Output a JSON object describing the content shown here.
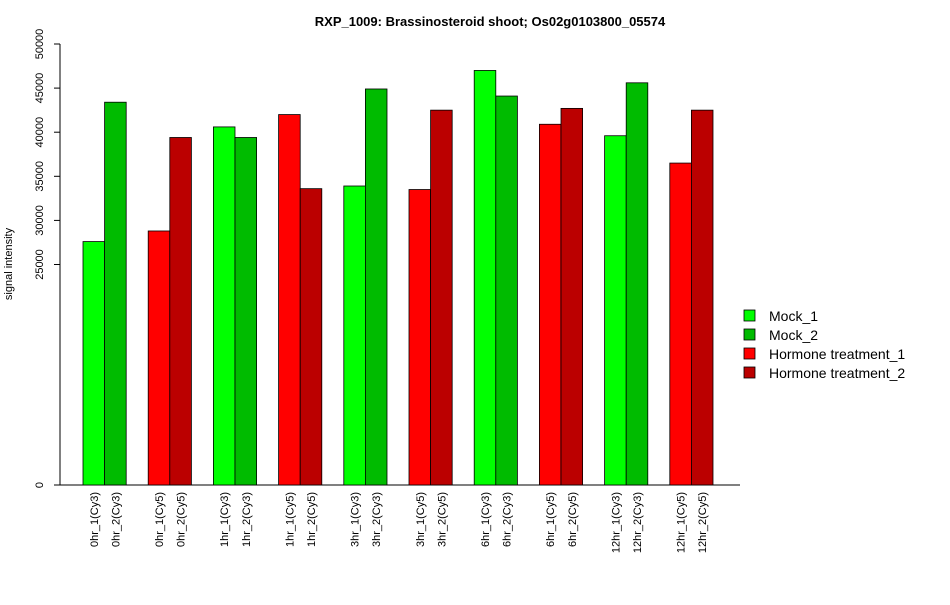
{
  "chart_data": {
    "type": "bar",
    "title": "RXP_1009: Brassinosteroid shoot; Os02g0103800_05574",
    "xlabel": "",
    "ylabel": "signal intensity",
    "ylim": [
      0,
      50000
    ],
    "y_ticks": [
      0,
      25000,
      30000,
      35000,
      40000,
      45000,
      50000
    ],
    "grid": false,
    "legend_position": "right",
    "colors": {
      "Mock_1": "#00ff00",
      "Mock_2": "#00bb00",
      "Hormone treatment_1": "#ff0000",
      "Hormone treatment_2": "#bb0000"
    },
    "legend": [
      "Mock_1",
      "Mock_2",
      "Hormone treatment_1",
      "Hormone treatment_2"
    ],
    "bars": [
      {
        "label": "0hr_1(Cy3)",
        "value": 27600,
        "series": "Mock_1"
      },
      {
        "label": "0hr_2(Cy3)",
        "value": 43400,
        "series": "Mock_2"
      },
      {
        "label": "0hr_1(Cy5)",
        "value": 28800,
        "series": "Hormone treatment_1"
      },
      {
        "label": "0hr_2(Cy5)",
        "value": 39400,
        "series": "Hormone treatment_2"
      },
      {
        "label": "1hr_1(Cy3)",
        "value": 40600,
        "series": "Mock_1"
      },
      {
        "label": "1hr_2(Cy3)",
        "value": 39400,
        "series": "Mock_2"
      },
      {
        "label": "1hr_1(Cy5)",
        "value": 42000,
        "series": "Hormone treatment_1"
      },
      {
        "label": "1hr_2(Cy5)",
        "value": 33600,
        "series": "Hormone treatment_2"
      },
      {
        "label": "3hr_1(Cy3)",
        "value": 33900,
        "series": "Mock_1"
      },
      {
        "label": "3hr_2(Cy3)",
        "value": 44900,
        "series": "Mock_2"
      },
      {
        "label": "3hr_1(Cy5)",
        "value": 33500,
        "series": "Hormone treatment_1"
      },
      {
        "label": "3hr_2(Cy5)",
        "value": 42500,
        "series": "Hormone treatment_2"
      },
      {
        "label": "6hr_1(Cy3)",
        "value": 47000,
        "series": "Mock_1"
      },
      {
        "label": "6hr_2(Cy3)",
        "value": 44100,
        "series": "Mock_2"
      },
      {
        "label": "6hr_1(Cy5)",
        "value": 40900,
        "series": "Hormone treatment_1"
      },
      {
        "label": "6hr_2(Cy5)",
        "value": 42700,
        "series": "Hormone treatment_2"
      },
      {
        "label": "12hr_1(Cy3)",
        "value": 39600,
        "series": "Mock_1"
      },
      {
        "label": "12hr_2(Cy3)",
        "value": 45600,
        "series": "Mock_2"
      },
      {
        "label": "12hr_1(Cy5)",
        "value": 36500,
        "series": "Hormone treatment_1"
      },
      {
        "label": "12hr_2(Cy5)",
        "value": 42500,
        "series": "Hormone treatment_2"
      }
    ]
  }
}
